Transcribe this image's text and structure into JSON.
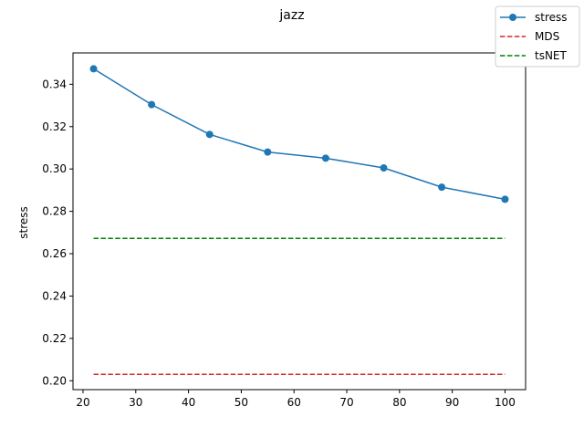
{
  "chart_data": {
    "type": "line",
    "title": "jazz",
    "xlabel": "",
    "ylabel": "stress",
    "xlim": [
      18.1,
      103.9
    ],
    "ylim": [
      0.1958,
      0.3548
    ],
    "xticks": [
      20,
      30,
      40,
      50,
      60,
      70,
      80,
      90,
      100
    ],
    "yticks": [
      0.2,
      0.22,
      0.24,
      0.26,
      0.28,
      0.3,
      0.32,
      0.34
    ],
    "ytick_labels": [
      "0.20",
      "0.22",
      "0.24",
      "0.26",
      "0.28",
      "0.30",
      "0.32",
      "0.34"
    ],
    "grid": false,
    "legend_position": "upper-right-outside",
    "series": [
      {
        "name": "stress",
        "style": "solid-line-with-markers",
        "color": "#1f77b4",
        "x": [
          22,
          33,
          44,
          55,
          66,
          77,
          88,
          100
        ],
        "y": [
          0.3473,
          0.3304,
          0.3163,
          0.308,
          0.3051,
          0.3005,
          0.2914,
          0.2857
        ]
      },
      {
        "name": "MDS",
        "style": "dashed",
        "color": "#d62728",
        "x": [
          22,
          100
        ],
        "y": [
          0.203,
          0.203
        ]
      },
      {
        "name": "tsNET",
        "style": "dashed",
        "color": "#008000",
        "x": [
          22,
          100
        ],
        "y": [
          0.2672,
          0.2672
        ]
      }
    ]
  }
}
